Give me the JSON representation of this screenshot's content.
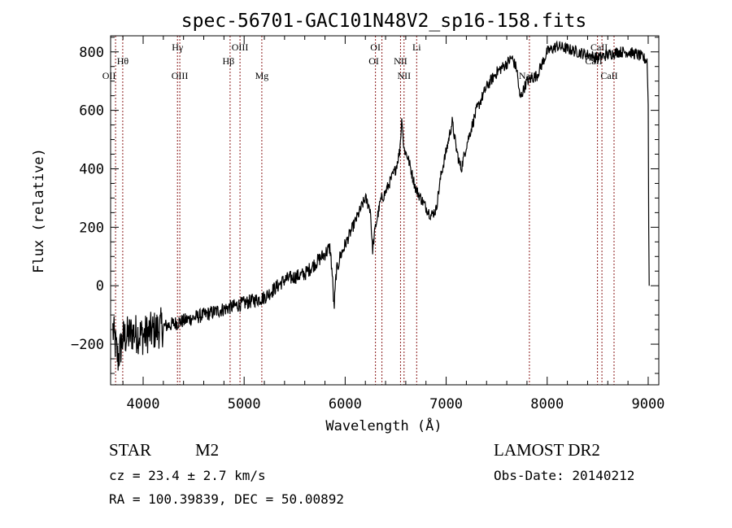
{
  "chart_data": {
    "type": "line",
    "title": "spec-56701-GAC101N48V2_sp16-158.fits",
    "xlabel": "Wavelength (Å)",
    "ylabel": "Flux (relative)",
    "xlim": [
      3678,
      9105
    ],
    "ylim": [
      -339,
      855
    ],
    "xticks": [
      4000,
      5000,
      6000,
      7000,
      8000,
      9000
    ],
    "xtick_labels": [
      "4000",
      "5000",
      "6000",
      "7000",
      "8000",
      "9000"
    ],
    "yticks": [
      -200,
      0,
      200,
      400,
      600,
      800
    ],
    "ytick_labels": [
      "−200",
      "0",
      "200",
      "400",
      "600",
      "800"
    ],
    "grid": false,
    "series": [
      {
        "name": "spectrum",
        "color": "#000000",
        "x": [
          3700,
          3750,
          3800,
          3900,
          4000,
          4200,
          4400,
          4600,
          4800,
          5000,
          5200,
          5400,
          5600,
          5800,
          5850,
          5870,
          5890,
          5910,
          5950,
          6000,
          6100,
          6200,
          6250,
          6270,
          6300,
          6350,
          6400,
          6500,
          6540,
          6563,
          6580,
          6620,
          6700,
          6780,
          6850,
          6900,
          6950,
          7000,
          7060,
          7100,
          7130,
          7150,
          7200,
          7300,
          7400,
          7500,
          7600,
          7650,
          7700,
          7730,
          7800,
          7900,
          8000,
          8100,
          8200,
          8300,
          8400,
          8500,
          8600,
          8700,
          8800,
          8900,
          8990,
          9000,
          9005,
          9010
        ],
        "y": [
          -150,
          -250,
          -180,
          -160,
          -170,
          -140,
          -120,
          -100,
          -80,
          -60,
          -40,
          20,
          40,
          110,
          130,
          50,
          -80,
          40,
          100,
          140,
          220,
          300,
          260,
          120,
          200,
          290,
          320,
          400,
          460,
          580,
          470,
          440,
          330,
          280,
          240,
          260,
          380,
          460,
          560,
          470,
          420,
          400,
          480,
          600,
          680,
          730,
          760,
          780,
          740,
          640,
          700,
          720,
          800,
          820,
          810,
          800,
          790,
          780,
          790,
          800,
          800,
          790,
          770,
          620,
          200,
          0
        ]
      }
    ],
    "line_markers": {
      "color": "#8b1a1a",
      "lines": [
        {
          "label": "OII",
          "wavelength": 3727
        },
        {
          "label": "Hθ",
          "wavelength": 3798
        },
        {
          "label": "Hγ",
          "wavelength": 4340
        },
        {
          "label": "OIII",
          "wavelength": 4363
        },
        {
          "label": "Hβ",
          "wavelength": 4861
        },
        {
          "label": "OIII",
          "wavelength": 4959
        },
        {
          "label": "Mg",
          "wavelength": 5175
        },
        {
          "label": "OI",
          "wavelength": 6300
        },
        {
          "label": "OI",
          "wavelength": 6364
        },
        {
          "label": "NII",
          "wavelength": 6548
        },
        {
          "label": "NII",
          "wavelength": 6583
        },
        {
          "label": "Li",
          "wavelength": 6708
        },
        {
          "label": "NaI",
          "wavelength": 7824
        },
        {
          "label": "CaII",
          "wavelength": 8498
        },
        {
          "label": "CaII",
          "wavelength": 8542
        },
        {
          "label": "CaII",
          "wavelength": 8662
        }
      ]
    }
  },
  "info": {
    "class": "STAR",
    "subclass": "M2",
    "survey": "LAMOST DR2",
    "cz": "cz = 23.4 ± 2.7 km/s",
    "obs_date": "Obs-Date: 20140212",
    "coords": "RA = 100.39839, DEC =  50.00892"
  }
}
